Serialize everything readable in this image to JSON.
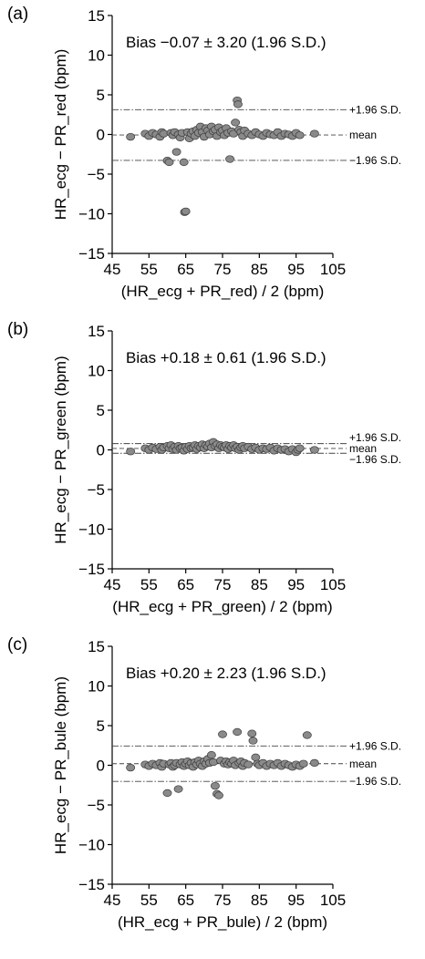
{
  "chart_data": [
    {
      "type": "scatter",
      "panel_label": "(a)",
      "title": "Bias −0.07 ± 3.20 (1.96 S.D.)",
      "xlabel": "(HR_ecg + PR_red) / 2  (bpm)",
      "ylabel": "HR_ecg − PR_red  (bpm)",
      "xlim": [
        45,
        105
      ],
      "ylim": [
        -15,
        15
      ],
      "xticks": [
        "45",
        "55",
        "65",
        "75",
        "85",
        "95",
        "105"
      ],
      "yticks": [
        "15",
        "10",
        "5",
        "0",
        "−5",
        "−10",
        "−15"
      ],
      "grid": false,
      "mean": -0.07,
      "upper": 3.13,
      "lower": -3.27,
      "ref_labels": {
        "upper": "+1.96 S.D.",
        "mean": "mean",
        "lower": "−1.96 S.D."
      },
      "points": [
        [
          50,
          -0.3
        ],
        [
          54,
          0.1
        ],
        [
          55,
          -0.2
        ],
        [
          56,
          0.2
        ],
        [
          57,
          0.0
        ],
        [
          58,
          -0.3
        ],
        [
          58.5,
          0.3
        ],
        [
          59,
          0.1
        ],
        [
          60,
          -3.3
        ],
        [
          60.5,
          -3.5
        ],
        [
          61,
          0.2
        ],
        [
          61.5,
          -0.1
        ],
        [
          62,
          0.3
        ],
        [
          62.5,
          -2.2
        ],
        [
          63,
          0.0
        ],
        [
          63.5,
          -0.4
        ],
        [
          64,
          0.2
        ],
        [
          64.5,
          -3.5
        ],
        [
          64.7,
          -9.8
        ],
        [
          65,
          -9.7
        ],
        [
          65.5,
          0.3
        ],
        [
          66,
          -0.5
        ],
        [
          66.5,
          0.1
        ],
        [
          67,
          0.4
        ],
        [
          67.5,
          -0.2
        ],
        [
          68,
          0.6
        ],
        [
          68.5,
          0.2
        ],
        [
          69,
          1.0
        ],
        [
          69.5,
          0.3
        ],
        [
          70,
          -0.3
        ],
        [
          70.5,
          0.8
        ],
        [
          71,
          0.5
        ],
        [
          71.5,
          0.0
        ],
        [
          72,
          1.0
        ],
        [
          72.5,
          0.4
        ],
        [
          73,
          0.6
        ],
        [
          73.5,
          -0.2
        ],
        [
          74,
          0.9
        ],
        [
          74.5,
          0.3
        ],
        [
          75,
          0.5
        ],
        [
          75.5,
          -0.1
        ],
        [
          76,
          0.8
        ],
        [
          76.5,
          0.2
        ],
        [
          77,
          -3.1
        ],
        [
          77.5,
          0.4
        ],
        [
          78,
          0.1
        ],
        [
          78.5,
          1.5
        ],
        [
          79,
          4.3
        ],
        [
          79.2,
          3.8
        ],
        [
          79.5,
          0.6
        ],
        [
          80,
          0.3
        ],
        [
          80.5,
          -0.2
        ],
        [
          81,
          0.5
        ],
        [
          82,
          0.1
        ],
        [
          83,
          -0.1
        ],
        [
          84,
          0.3
        ],
        [
          85,
          0.0
        ],
        [
          86,
          -0.2
        ],
        [
          87,
          0.2
        ],
        [
          88,
          0.0
        ],
        [
          89,
          -0.1
        ],
        [
          90,
          0.3
        ],
        [
          91,
          -0.2
        ],
        [
          92,
          0.1
        ],
        [
          93,
          0.0
        ],
        [
          94,
          -0.2
        ],
        [
          95,
          0.2
        ],
        [
          96,
          -0.1
        ],
        [
          100,
          0.1
        ]
      ]
    },
    {
      "type": "scatter",
      "panel_label": "(b)",
      "title": "Bias +0.18 ± 0.61 (1.96 S.D.)",
      "xlabel": "(HR_ecg + PR_green) / 2  (bpm)",
      "ylabel": "HR_ecg − PR_green  (bpm)",
      "xlim": [
        45,
        105
      ],
      "ylim": [
        -15,
        15
      ],
      "xticks": [
        "45",
        "55",
        "65",
        "75",
        "85",
        "95",
        "105"
      ],
      "yticks": [
        "15",
        "10",
        "5",
        "0",
        "−5",
        "−10",
        "−15"
      ],
      "grid": false,
      "mean": 0.18,
      "upper": 0.79,
      "lower": -0.43,
      "ref_labels": {
        "upper": "+1.96 S.D.",
        "mean": "mean",
        "lower": "−1.96 S.D."
      },
      "points": [
        [
          50,
          -0.2
        ],
        [
          54,
          0.2
        ],
        [
          55,
          0.0
        ],
        [
          56,
          0.3
        ],
        [
          57,
          0.1
        ],
        [
          58,
          0.4
        ],
        [
          58.5,
          0.0
        ],
        [
          59,
          0.3
        ],
        [
          60,
          0.5
        ],
        [
          60.5,
          0.2
        ],
        [
          61,
          0.6
        ],
        [
          61.5,
          0.1
        ],
        [
          62,
          0.4
        ],
        [
          62.5,
          0.0
        ],
        [
          63,
          0.5
        ],
        [
          63.5,
          0.2
        ],
        [
          64,
          0.3
        ],
        [
          64.5,
          -0.1
        ],
        [
          65,
          0.4
        ],
        [
          65.5,
          0.1
        ],
        [
          66,
          0.5
        ],
        [
          66.5,
          0.2
        ],
        [
          67,
          0.3
        ],
        [
          67.5,
          0.6
        ],
        [
          68,
          0.1
        ],
        [
          68.5,
          0.5
        ],
        [
          69,
          0.3
        ],
        [
          69.5,
          0.7
        ],
        [
          70,
          0.2
        ],
        [
          70.5,
          0.6
        ],
        [
          71,
          0.4
        ],
        [
          71.5,
          0.8
        ],
        [
          72,
          0.3
        ],
        [
          72.5,
          1.0
        ],
        [
          73,
          0.5
        ],
        [
          73.5,
          0.7
        ],
        [
          74,
          0.2
        ],
        [
          74.5,
          0.6
        ],
        [
          75,
          0.4
        ],
        [
          75.5,
          0.3
        ],
        [
          76,
          0.6
        ],
        [
          76.5,
          0.1
        ],
        [
          77,
          0.5
        ],
        [
          77.5,
          0.3
        ],
        [
          78,
          0.6
        ],
        [
          78.5,
          0.2
        ],
        [
          79,
          0.4
        ],
        [
          79.5,
          0.0
        ],
        [
          80,
          0.3
        ],
        [
          80.5,
          0.5
        ],
        [
          81,
          0.2
        ],
        [
          82,
          0.4
        ],
        [
          83,
          0.1
        ],
        [
          84,
          0.3
        ],
        [
          85,
          0.0
        ],
        [
          86,
          0.2
        ],
        [
          87,
          0.1
        ],
        [
          88,
          0.3
        ],
        [
          89,
          -0.1
        ],
        [
          90,
          0.2
        ],
        [
          91,
          0.0
        ],
        [
          92,
          0.1
        ],
        [
          93,
          -0.2
        ],
        [
          94,
          0.1
        ],
        [
          95,
          -0.3
        ],
        [
          95.5,
          0.0
        ],
        [
          96,
          0.2
        ],
        [
          100,
          0.0
        ]
      ]
    },
    {
      "type": "scatter",
      "panel_label": "(c)",
      "title": "Bias +0.20 ± 2.23 (1.96 S.D.)",
      "xlabel": "(HR_ecg + PR_bule) / 2  (bpm)",
      "ylabel": "HR_ecg − PR_bule  (bpm)",
      "xlim": [
        45,
        105
      ],
      "ylim": [
        -15,
        15
      ],
      "xticks": [
        "45",
        "55",
        "65",
        "75",
        "85",
        "95",
        "105"
      ],
      "yticks": [
        "15",
        "10",
        "5",
        "0",
        "−5",
        "−10",
        "−15"
      ],
      "grid": false,
      "mean": 0.2,
      "upper": 2.43,
      "lower": -2.03,
      "ref_labels": {
        "upper": "+1.96 S.D.",
        "mean": "mean",
        "lower": "−1.96 S.D."
      },
      "points": [
        [
          50,
          -0.3
        ],
        [
          54,
          0.1
        ],
        [
          55,
          -0.1
        ],
        [
          56,
          0.2
        ],
        [
          57,
          0.0
        ],
        [
          58,
          0.3
        ],
        [
          58.5,
          -0.2
        ],
        [
          59,
          0.2
        ],
        [
          60,
          -3.5
        ],
        [
          60.5,
          0.1
        ],
        [
          61,
          0.3
        ],
        [
          61.5,
          -0.2
        ],
        [
          62,
          0.0
        ],
        [
          62.5,
          0.3
        ],
        [
          63,
          -3.0
        ],
        [
          63.5,
          0.1
        ],
        [
          64,
          0.4
        ],
        [
          64.5,
          -0.1
        ],
        [
          65,
          0.2
        ],
        [
          65.5,
          0.5
        ],
        [
          66,
          0.0
        ],
        [
          66.5,
          0.3
        ],
        [
          67,
          -0.2
        ],
        [
          67.5,
          0.4
        ],
        [
          68,
          0.1
        ],
        [
          68.5,
          0.6
        ],
        [
          69,
          0.2
        ],
        [
          69.5,
          -0.1
        ],
        [
          70,
          0.5
        ],
        [
          70.5,
          0.2
        ],
        [
          71,
          0.8
        ],
        [
          71.5,
          0.3
        ],
        [
          72,
          1.3
        ],
        [
          72.5,
          0.4
        ],
        [
          73,
          -2.6
        ],
        [
          73.5,
          -3.6
        ],
        [
          74,
          -3.8
        ],
        [
          74.5,
          0.6
        ],
        [
          75,
          3.9
        ],
        [
          75.5,
          0.2
        ],
        [
          76,
          0.5
        ],
        [
          76.5,
          0.1
        ],
        [
          77,
          0.4
        ],
        [
          77.5,
          0.2
        ],
        [
          78,
          0.6
        ],
        [
          78.5,
          0.0
        ],
        [
          79,
          4.2
        ],
        [
          79.5,
          0.3
        ],
        [
          80,
          0.5
        ],
        [
          80.5,
          -0.1
        ],
        [
          81,
          0.3
        ],
        [
          82,
          0.1
        ],
        [
          83,
          4.0
        ],
        [
          83.3,
          3.1
        ],
        [
          84,
          1.0
        ],
        [
          84.5,
          0.2
        ],
        [
          85,
          0.0
        ],
        [
          86,
          0.3
        ],
        [
          87,
          -0.1
        ],
        [
          88,
          0.2
        ],
        [
          89,
          0.0
        ],
        [
          90,
          0.3
        ],
        [
          91,
          -0.1
        ],
        [
          92,
          0.2
        ],
        [
          93,
          0.0
        ],
        [
          94,
          -0.2
        ],
        [
          95,
          0.1
        ],
        [
          96,
          -0.1
        ],
        [
          97,
          0.2
        ],
        [
          98,
          3.8
        ],
        [
          100,
          0.3
        ]
      ]
    }
  ]
}
